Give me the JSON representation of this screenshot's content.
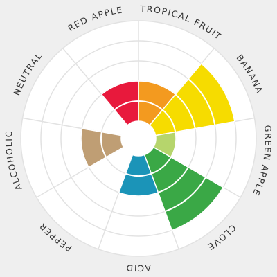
{
  "chart_data": {
    "type": "polar-area",
    "categories": [
      "TROPICAL FRUIT",
      "BANANA",
      "GREEN APPLE",
      "CLOVE",
      "ACID",
      "PEPPER",
      "ALCOHOLIC",
      "NEUTRAL",
      "RED APPLE"
    ],
    "values": [
      2,
      4,
      1,
      4,
      2,
      0,
      2,
      0,
      2
    ],
    "colors": [
      "#f39a1f",
      "#f6dc00",
      "#b6d56c",
      "#3aa846",
      "#1b94b8",
      "#f39a1f",
      "#bf9e74",
      "#f39a1f",
      "#e8193c"
    ],
    "rlim": [
      0,
      5
    ],
    "rticks": [
      1,
      2,
      3,
      4,
      5
    ],
    "grid": true
  }
}
